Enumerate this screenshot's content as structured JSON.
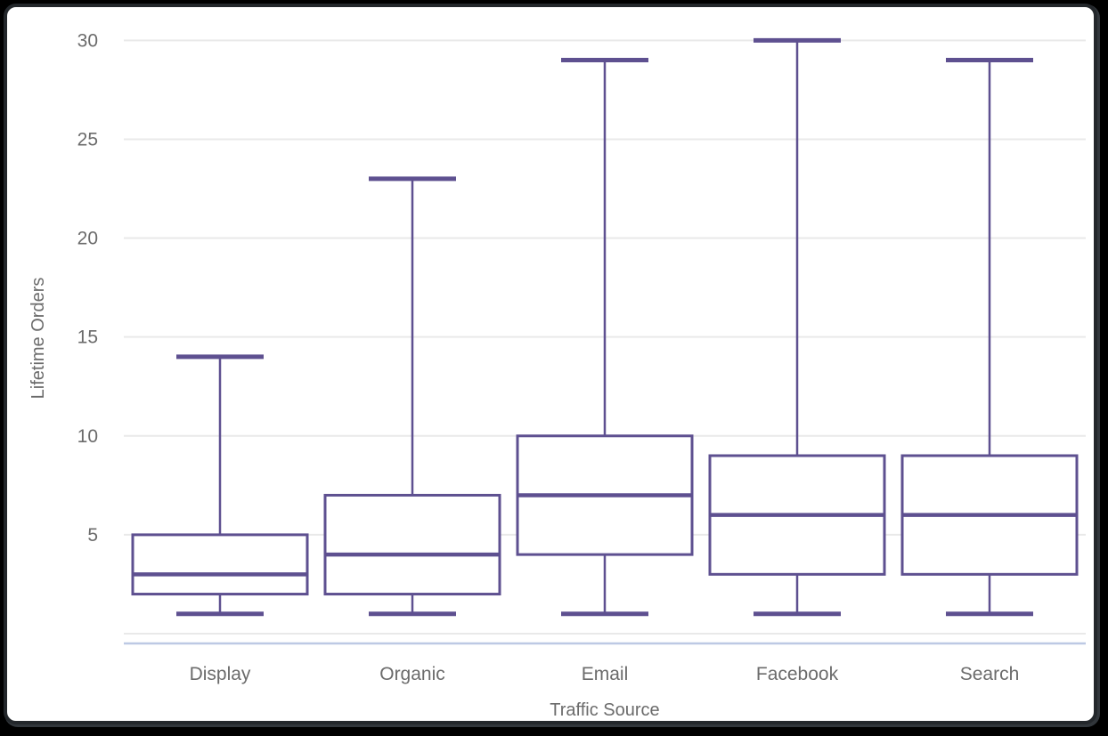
{
  "chart_data": {
    "type": "boxplot",
    "title": "",
    "xlabel": "Traffic Source",
    "ylabel": "Lifetime Orders",
    "categories": [
      "Display",
      "Organic",
      "Email",
      "Facebook",
      "Search"
    ],
    "series": [
      {
        "name": "Display",
        "min": 1,
        "q1": 2,
        "median": 3,
        "q3": 5,
        "max": 14
      },
      {
        "name": "Organic",
        "min": 1,
        "q1": 2,
        "median": 4,
        "q3": 7,
        "max": 23
      },
      {
        "name": "Email",
        "min": 1,
        "q1": 4,
        "median": 7,
        "q3": 10,
        "max": 29
      },
      {
        "name": "Facebook",
        "min": 1,
        "q1": 3,
        "median": 6,
        "q3": 9,
        "max": 30
      },
      {
        "name": "Search",
        "min": 1,
        "q1": 3,
        "median": 6,
        "q3": 9,
        "max": 29
      }
    ],
    "y_ticks": [
      5,
      10,
      15,
      20,
      25,
      30
    ],
    "ylim": [
      0,
      31.5
    ],
    "grid": true,
    "legend": false,
    "colors": {
      "box_stroke": "#5E5090",
      "gridline": "#e9e9e9",
      "baseline": "#bdc9e4",
      "text": "#6b6b6b",
      "plot_bg": "#ffffff",
      "frame_border": "#23272b",
      "page_bg": "#000000"
    }
  }
}
